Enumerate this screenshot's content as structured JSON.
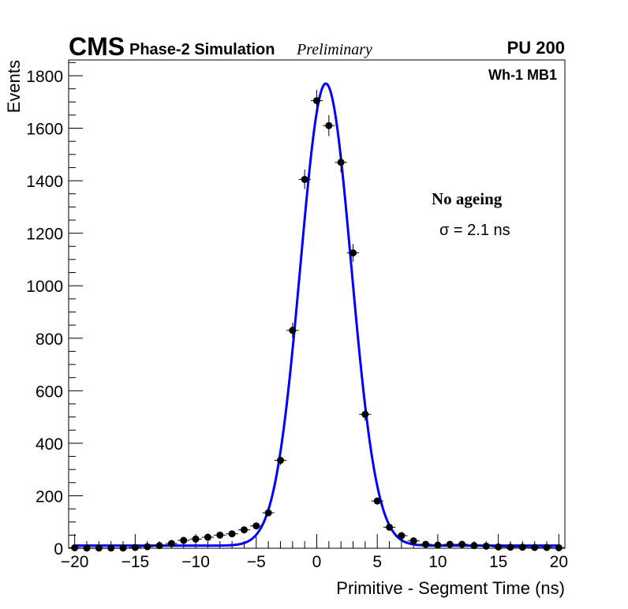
{
  "header": {
    "experiment": "CMS",
    "simulation": "Phase-2 Simulation",
    "status": "Preliminary",
    "pileup": "PU 200"
  },
  "chart_data": {
    "type": "scatter",
    "title": "",
    "xlabel": "Primitive - Segment Time (ns)",
    "ylabel": "Events",
    "xlim": [
      -20.5,
      20.5
    ],
    "ylim": [
      0,
      1860
    ],
    "xticks": [
      -20,
      -15,
      -10,
      -5,
      0,
      5,
      10,
      15,
      20
    ],
    "xtick_labels": [
      "−20",
      "−15",
      "−10",
      "−5",
      "0",
      "5",
      "10",
      "15",
      "20"
    ],
    "yticks": [
      0,
      200,
      400,
      600,
      800,
      1000,
      1200,
      1400,
      1600,
      1800
    ],
    "ytick_labels": [
      "0",
      "200",
      "400",
      "600",
      "800",
      "1000",
      "1200",
      "1400",
      "1600",
      "1800"
    ],
    "legend": [],
    "chamber_label": "Wh-1 MB1",
    "annotations": {
      "condition": "No ageing",
      "resolution": "σ = 2.1 ns"
    },
    "colors": {
      "fit": "#0000ff",
      "data": "#000000"
    },
    "series": [
      {
        "name": "data",
        "x": [
          -20,
          -19,
          -18,
          -17,
          -16,
          -15,
          -14,
          -13,
          -12,
          -11,
          -10,
          -9,
          -8,
          -7,
          -6,
          -5,
          -4,
          -3,
          -2,
          -1,
          0,
          1,
          2,
          3,
          4,
          5,
          6,
          7,
          8,
          9,
          10,
          11,
          12,
          13,
          14,
          15,
          16,
          17,
          18,
          19,
          20
        ],
        "y": [
          2,
          1,
          1,
          1,
          1,
          3,
          6,
          10,
          18,
          30,
          35,
          42,
          50,
          55,
          70,
          85,
          135,
          335,
          830,
          1405,
          1705,
          1610,
          1470,
          1125,
          510,
          180,
          80,
          48,
          28,
          15,
          12,
          15,
          15,
          10,
          8,
          5,
          4,
          4,
          3,
          3,
          2
        ]
      },
      {
        "name": "fit",
        "function": "gaussian + flat background",
        "mean": 0.75,
        "sigma": 2.1,
        "amplitude": 1760,
        "background": 10
      }
    ]
  }
}
